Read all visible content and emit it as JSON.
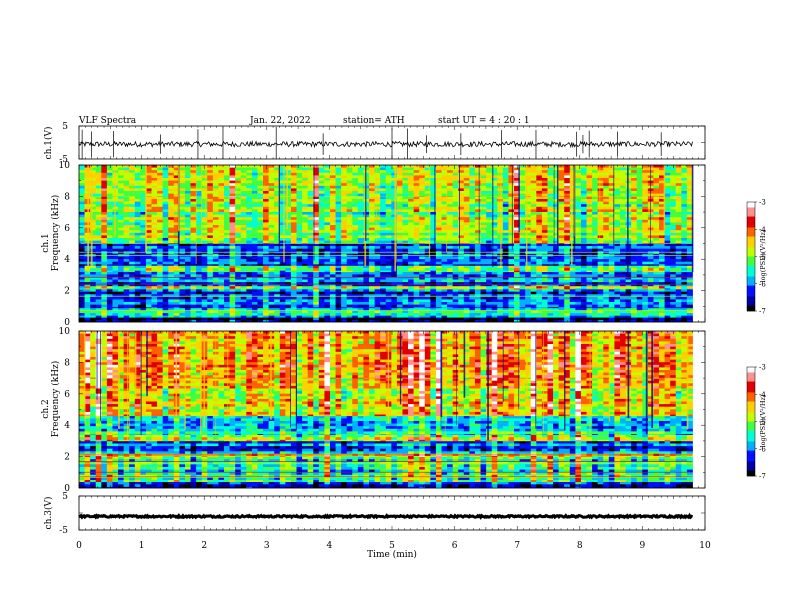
{
  "header": {
    "title": "VLF  Spectra",
    "date": "Jan. 22, 2022",
    "station": "station= ATH",
    "start": "start  UT  =   4  : 20 : 1"
  },
  "chart_data": {
    "type": "heatmap",
    "x_axis": {
      "label": "Time  (min)",
      "range": [
        0,
        10
      ],
      "ticks": [
        "0",
        "1",
        "2",
        "3",
        "4",
        "5",
        "6",
        "7",
        "8",
        "9",
        "10"
      ],
      "data_end": 9.8
    },
    "panels": [
      {
        "type": "line",
        "ylabel": "ch.1(V)",
        "ylim": [
          -5,
          5
        ],
        "yticks": [
          "5",
          "-5"
        ],
        "baseline": -0.5,
        "noise_amplitude": 0.8,
        "spike_times": [
          0.05,
          0.2,
          0.55,
          1.3,
          1.9,
          2.3,
          3.15,
          3.9,
          5.0,
          5.25,
          5.55,
          6.1,
          6.75,
          7.3,
          7.95,
          8.05,
          8.15,
          8.6,
          9.3
        ]
      },
      {
        "type": "heatmap",
        "ylabel_top": "ch.1",
        "ylabel": "Frequency  (kHz)",
        "ylim": [
          0,
          10
        ],
        "yticks": [
          "0",
          "2",
          "4",
          "6",
          "8",
          "10"
        ],
        "bands": [
          {
            "from": 0,
            "to": 0.3,
            "level": -6.8
          },
          {
            "from": 0.3,
            "to": 0.9,
            "level": -5.6
          },
          {
            "from": 0.9,
            "to": 2.1,
            "level": -6.3
          },
          {
            "from": 2.1,
            "to": 2.3,
            "level": -5.1
          },
          {
            "from": 2.3,
            "to": 3.2,
            "level": -6.1
          },
          {
            "from": 3.2,
            "to": 3.6,
            "level": -5.5
          },
          {
            "from": 3.6,
            "to": 5.0,
            "level": -6.2
          },
          {
            "from": 5.0,
            "to": 8.0,
            "level": -5.0
          },
          {
            "from": 8.0,
            "to": 10,
            "level": -4.7
          }
        ],
        "colorbar": {
          "label": "log(PSD)(V²/Hz)",
          "ticks": [
            "-3",
            "-4",
            "-5",
            "-6",
            "-7"
          ],
          "range": [
            -7,
            -3
          ]
        }
      },
      {
        "type": "heatmap",
        "ylabel_top": "ch.2",
        "ylabel": "Frequency  (kHz)",
        "ylim": [
          0,
          10
        ],
        "yticks": [
          "0",
          "2",
          "4",
          "6",
          "8",
          "10"
        ],
        "bands": [
          {
            "from": 0,
            "to": 0.4,
            "level": -6.6
          },
          {
            "from": 0.4,
            "to": 2.0,
            "level": -5.5
          },
          {
            "from": 2.0,
            "to": 2.2,
            "level": -4.6
          },
          {
            "from": 2.2,
            "to": 3.0,
            "level": -6.1
          },
          {
            "from": 3.0,
            "to": 3.4,
            "level": -4.8
          },
          {
            "from": 3.4,
            "to": 4.6,
            "level": -5.7
          },
          {
            "from": 4.6,
            "to": 7.0,
            "level": -4.6
          },
          {
            "from": 7.0,
            "to": 10,
            "level": -4.2
          }
        ],
        "colorbar": {
          "label": "log(PSD)(V²/Hz)",
          "ticks": [
            "-3",
            "-4",
            "-5",
            "-6",
            "-7"
          ],
          "range": [
            -7,
            -3
          ]
        }
      },
      {
        "type": "line",
        "ylabel": "ch.3(V)",
        "ylim": [
          -5,
          5
        ],
        "yticks": [
          "5",
          "-5"
        ],
        "baseline": -1.0,
        "noise_amplitude": 0.25
      }
    ]
  },
  "colors": {
    "palette": [
      "#000000",
      "#0000a0",
      "#0010ff",
      "#00b0ff",
      "#00ffd0",
      "#40ff40",
      "#c0ff00",
      "#ffd000",
      "#ff6000",
      "#e00000",
      "#ff9090",
      "#ffffff"
    ]
  }
}
